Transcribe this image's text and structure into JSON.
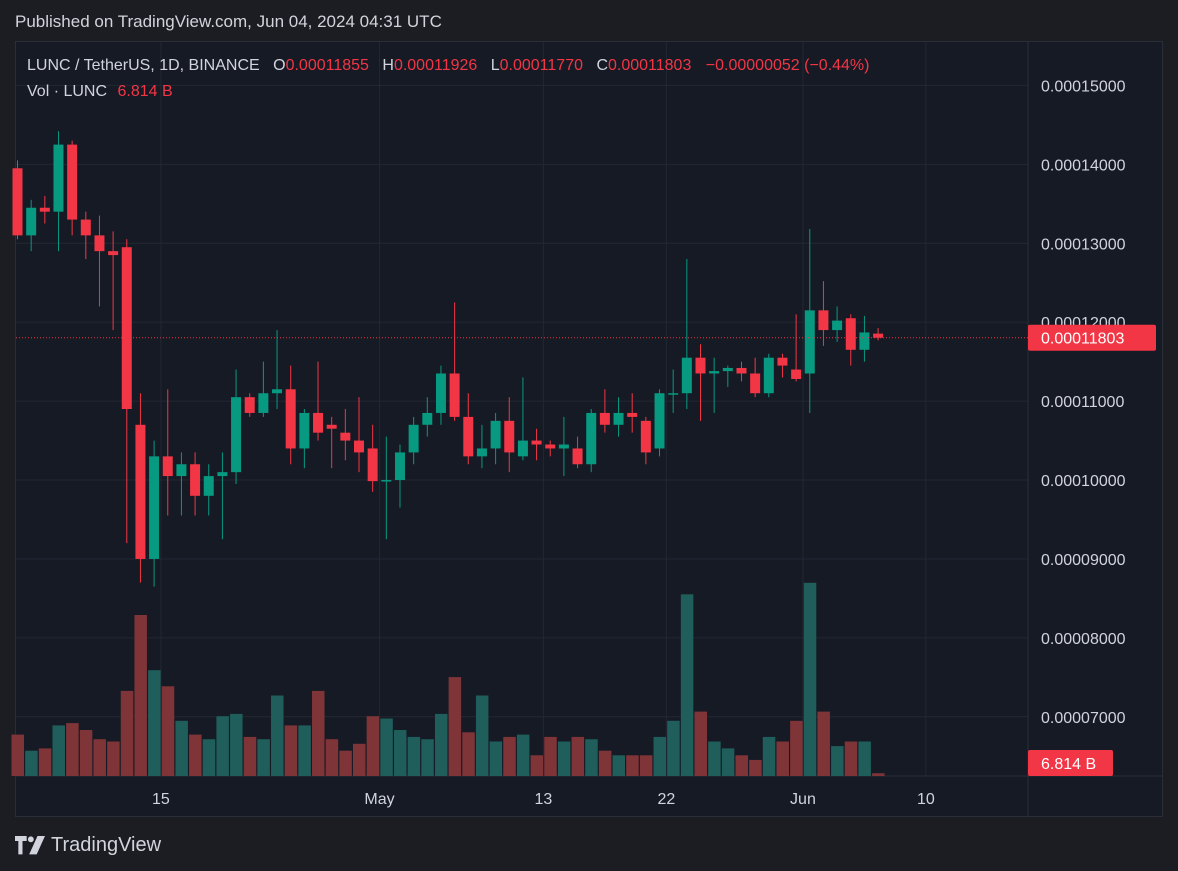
{
  "header": {
    "published": "Published on TradingView.com, Jun 04, 2024 04:31 UTC"
  },
  "legend": {
    "symbol": "LUNC / TetherUS, 1D, BINANCE",
    "o_label": "O",
    "o": "0.00011855",
    "h_label": "H",
    "h": "0.00011926",
    "l_label": "L",
    "l": "0.00011770",
    "c_label": "C",
    "c": "0.00011803",
    "change": "−0.00000052 (−0.44%)",
    "vol_label": "Vol · LUNC",
    "vol": "6.814 B"
  },
  "footer": {
    "brand": "TradingView"
  },
  "colors": {
    "up": "#089981",
    "down": "#f23645",
    "vol_up": "#1f5e5b",
    "vol_down": "#7f3438",
    "grid": "#232733"
  },
  "chart_data": {
    "type": "candlestick",
    "title": "LUNC / TetherUS, 1D, BINANCE",
    "ylim": [
      6.25e-05,
      0.0001555
    ],
    "y_ticks": [
      "0.00015000",
      "0.00014000",
      "0.00013000",
      "0.00012000",
      "0.00011000",
      "0.00010000",
      "0.00009000",
      "0.00008000",
      "0.00007000"
    ],
    "y_tick_values": [
      0.00015,
      0.00014,
      0.00013,
      0.00012,
      0.00011,
      0.0001,
      9e-05,
      8e-05,
      7e-05
    ],
    "x_ticks": [
      {
        "label": "15",
        "index": 10.5
      },
      {
        "label": "May",
        "index": 26.5
      },
      {
        "label": "13",
        "index": 38.5
      },
      {
        "label": "22",
        "index": 47.5
      },
      {
        "label": "Jun",
        "index": 57.5
      },
      {
        "label": "10",
        "index": 66.5
      }
    ],
    "last_price": 0.00011803,
    "last_price_label": "0.00011803",
    "last_volume_label": "6.814 B",
    "candles": [
      {
        "o": 0.0001395,
        "h": 0.0001405,
        "l": 0.0001305,
        "c": 0.000131,
        "v": 0.9
      },
      {
        "o": 0.000131,
        "h": 0.0001355,
        "l": 0.000129,
        "c": 0.0001345,
        "v": 0.55
      },
      {
        "o": 0.0001345,
        "h": 0.000136,
        "l": 0.0001325,
        "c": 0.000134,
        "v": 0.6
      },
      {
        "o": 0.000134,
        "h": 0.0001442,
        "l": 0.000129,
        "c": 0.0001425,
        "v": 1.1
      },
      {
        "o": 0.0001425,
        "h": 0.000143,
        "l": 0.000131,
        "c": 0.000133,
        "v": 1.15
      },
      {
        "o": 0.000133,
        "h": 0.000134,
        "l": 0.000128,
        "c": 0.000131,
        "v": 1.0
      },
      {
        "o": 0.000131,
        "h": 0.0001335,
        "l": 0.000122,
        "c": 0.000129,
        "v": 0.8
      },
      {
        "o": 0.000129,
        "h": 0.0001315,
        "l": 0.000119,
        "c": 0.0001285,
        "v": 0.75
      },
      {
        "o": 0.0001295,
        "h": 0.0001305,
        "l": 9.2e-05,
        "c": 0.000109,
        "v": 1.85
      },
      {
        "o": 0.000107,
        "h": 0.000111,
        "l": 8.7e-05,
        "c": 9e-05,
        "v": 3.5
      },
      {
        "o": 9e-05,
        "h": 0.000105,
        "l": 8.65e-05,
        "c": 0.000103,
        "v": 2.3
      },
      {
        "o": 0.000103,
        "h": 0.0001115,
        "l": 9.55e-05,
        "c": 0.0001005,
        "v": 1.95
      },
      {
        "o": 0.0001005,
        "h": 0.0001035,
        "l": 9.55e-05,
        "c": 0.000102,
        "v": 1.2
      },
      {
        "o": 0.000102,
        "h": 0.0001035,
        "l": 9.55e-05,
        "c": 9.8e-05,
        "v": 0.9
      },
      {
        "o": 9.8e-05,
        "h": 0.000102,
        "l": 9.55e-05,
        "c": 0.0001005,
        "v": 0.8
      },
      {
        "o": 0.0001005,
        "h": 0.0001035,
        "l": 9.25e-05,
        "c": 0.000101,
        "v": 1.3
      },
      {
        "o": 0.000101,
        "h": 0.000114,
        "l": 9.95e-05,
        "c": 0.0001105,
        "v": 1.35
      },
      {
        "o": 0.0001105,
        "h": 0.000111,
        "l": 0.000108,
        "c": 0.0001085,
        "v": 0.85
      },
      {
        "o": 0.0001085,
        "h": 0.000115,
        "l": 0.000108,
        "c": 0.000111,
        "v": 0.8
      },
      {
        "o": 0.000111,
        "h": 0.000119,
        "l": 0.000109,
        "c": 0.0001115,
        "v": 1.75
      },
      {
        "o": 0.0001115,
        "h": 0.0001145,
        "l": 0.000102,
        "c": 0.000104,
        "v": 1.1
      },
      {
        "o": 0.000104,
        "h": 0.000109,
        "l": 0.0001015,
        "c": 0.0001085,
        "v": 1.1
      },
      {
        "o": 0.0001085,
        "h": 0.000115,
        "l": 0.000105,
        "c": 0.000106,
        "v": 1.85
      },
      {
        "o": 0.000107,
        "h": 0.000108,
        "l": 0.0001015,
        "c": 0.0001065,
        "v": 0.8
      },
      {
        "o": 0.000106,
        "h": 0.000109,
        "l": 0.0001025,
        "c": 0.000105,
        "v": 0.55
      },
      {
        "o": 0.000105,
        "h": 0.0001105,
        "l": 0.000101,
        "c": 0.0001035,
        "v": 0.7
      },
      {
        "o": 0.000104,
        "h": 0.000107,
        "l": 9.85e-05,
        "c": 9.986e-05,
        "v": 1.3
      },
      {
        "o": 0.0001,
        "h": 0.0001055,
        "l": 9.25e-05,
        "c": 0.0001,
        "v": 1.25
      },
      {
        "o": 0.0001,
        "h": 0.0001045,
        "l": 9.65e-05,
        "c": 0.0001035,
        "v": 1.0
      },
      {
        "o": 0.0001035,
        "h": 0.000108,
        "l": 0.000102,
        "c": 0.000107,
        "v": 0.85
      },
      {
        "o": 0.000107,
        "h": 0.0001105,
        "l": 0.0001055,
        "c": 0.0001085,
        "v": 0.8
      },
      {
        "o": 0.0001085,
        "h": 0.0001145,
        "l": 0.000107,
        "c": 0.0001135,
        "v": 1.35
      },
      {
        "o": 0.0001135,
        "h": 0.0001225,
        "l": 0.0001075,
        "c": 0.000108,
        "v": 2.15
      },
      {
        "o": 0.000108,
        "h": 0.000111,
        "l": 0.000102,
        "c": 0.000103,
        "v": 0.95
      },
      {
        "o": 0.000103,
        "h": 0.000107,
        "l": 0.0001015,
        "c": 0.000104,
        "v": 1.75
      },
      {
        "o": 0.000104,
        "h": 0.0001085,
        "l": 0.000102,
        "c": 0.0001075,
        "v": 0.75
      },
      {
        "o": 0.0001075,
        "h": 0.0001105,
        "l": 0.000101,
        "c": 0.0001035,
        "v": 0.85
      },
      {
        "o": 0.000103,
        "h": 0.000113,
        "l": 0.0001025,
        "c": 0.000105,
        "v": 0.9
      },
      {
        "o": 0.000105,
        "h": 0.0001065,
        "l": 0.0001025,
        "c": 0.0001045,
        "v": 0.45
      },
      {
        "o": 0.0001045,
        "h": 0.000105,
        "l": 0.000103,
        "c": 0.000104,
        "v": 0.85
      },
      {
        "o": 0.000104,
        "h": 0.000108,
        "l": 0.0001005,
        "c": 0.0001045,
        "v": 0.75
      },
      {
        "o": 0.000104,
        "h": 0.0001055,
        "l": 0.0001015,
        "c": 0.000102,
        "v": 0.85
      },
      {
        "o": 0.000102,
        "h": 0.000109,
        "l": 0.000101,
        "c": 0.0001085,
        "v": 0.8
      },
      {
        "o": 0.0001085,
        "h": 0.0001115,
        "l": 0.000106,
        "c": 0.000107,
        "v": 0.55
      },
      {
        "o": 0.000107,
        "h": 0.0001105,
        "l": 0.0001055,
        "c": 0.0001085,
        "v": 0.45
      },
      {
        "o": 0.0001085,
        "h": 0.000111,
        "l": 0.000106,
        "c": 0.000108,
        "v": 0.45
      },
      {
        "o": 0.0001075,
        "h": 0.000108,
        "l": 0.000102,
        "c": 0.0001035,
        "v": 0.45
      },
      {
        "o": 0.000104,
        "h": 0.0001115,
        "l": 0.000103,
        "c": 0.000111,
        "v": 0.85
      },
      {
        "o": 0.000111,
        "h": 0.000114,
        "l": 0.0001085,
        "c": 0.000111,
        "v": 1.2
      },
      {
        "o": 0.000111,
        "h": 0.000128,
        "l": 0.000109,
        "c": 0.0001155,
        "v": 3.95
      },
      {
        "o": 0.0001155,
        "h": 0.0001172,
        "l": 0.0001075,
        "c": 0.0001135,
        "v": 1.4
      },
      {
        "o": 0.0001135,
        "h": 0.0001155,
        "l": 0.0001085,
        "c": 0.0001138,
        "v": 0.75
      },
      {
        "o": 0.0001138,
        "h": 0.0001145,
        "l": 0.0001118,
        "c": 0.0001142,
        "v": 0.6
      },
      {
        "o": 0.0001142,
        "h": 0.000115,
        "l": 0.0001125,
        "c": 0.0001135,
        "v": 0.45
      },
      {
        "o": 0.0001135,
        "h": 0.0001155,
        "l": 0.0001105,
        "c": 0.000111,
        "v": 0.35
      },
      {
        "o": 0.000111,
        "h": 0.000116,
        "l": 0.0001105,
        "c": 0.0001155,
        "v": 0.85
      },
      {
        "o": 0.0001155,
        "h": 0.000116,
        "l": 0.000113,
        "c": 0.0001145,
        "v": 0.75
      },
      {
        "o": 0.000114,
        "h": 0.000121,
        "l": 0.0001125,
        "c": 0.0001128,
        "v": 1.2
      },
      {
        "o": 0.0001135,
        "h": 0.0001318,
        "l": 0.0001085,
        "c": 0.0001215,
        "v": 4.2
      },
      {
        "o": 0.0001215,
        "h": 0.0001252,
        "l": 0.000117,
        "c": 0.000119,
        "v": 1.4
      },
      {
        "o": 0.000119,
        "h": 0.000122,
        "l": 0.0001175,
        "c": 0.0001202,
        "v": 0.65
      },
      {
        "o": 0.0001205,
        "h": 0.000121,
        "l": 0.0001145,
        "c": 0.0001165,
        "v": 0.75
      },
      {
        "o": 0.0001165,
        "h": 0.0001208,
        "l": 0.000115,
        "c": 0.0001187,
        "v": 0.75
      },
      {
        "o": 0.00011855,
        "h": 0.00011926,
        "l": 0.0001177,
        "c": 0.00011803,
        "v": 0.06
      }
    ]
  }
}
